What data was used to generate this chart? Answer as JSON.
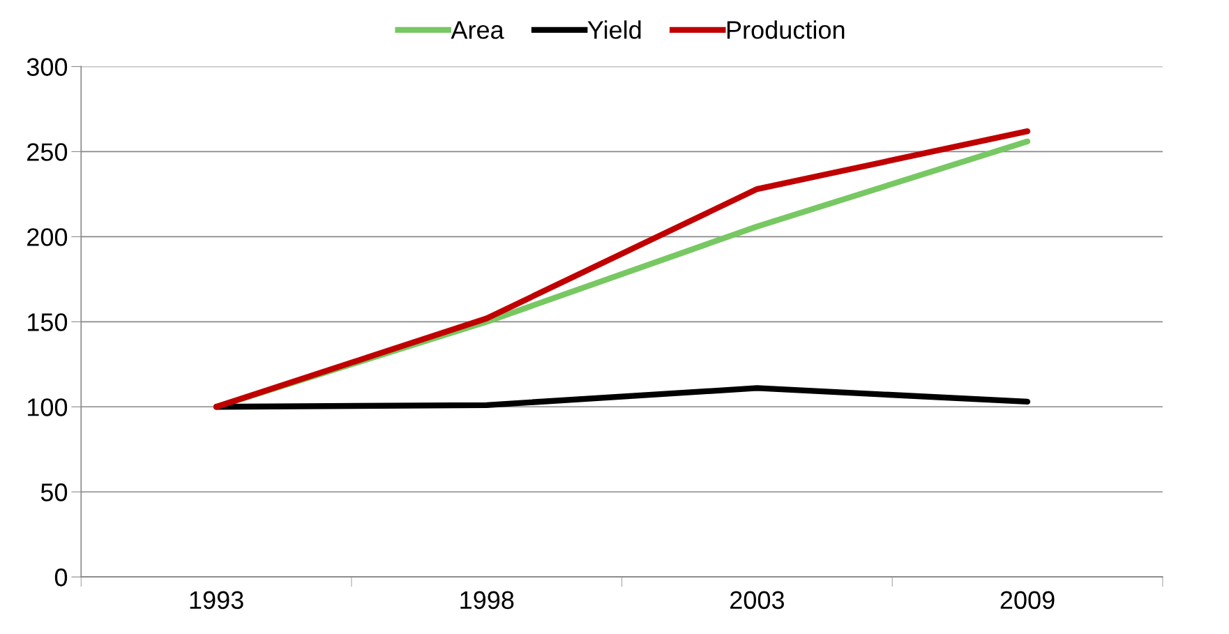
{
  "chart_data": {
    "type": "line",
    "categories": [
      "1993",
      "1998",
      "2003",
      "2009"
    ],
    "series": [
      {
        "name": "Area",
        "color": "#77c862",
        "values": [
          100,
          150,
          206,
          256
        ]
      },
      {
        "name": "Yield",
        "color": "#000000",
        "values": [
          100,
          101,
          111,
          103
        ]
      },
      {
        "name": "Production",
        "color": "#c00000",
        "values": [
          100,
          152,
          228,
          262
        ]
      }
    ],
    "ylim": [
      0,
      300
    ],
    "yticks": [
      0,
      50,
      100,
      150,
      200,
      250,
      300
    ],
    "grid": "y",
    "legend": "top",
    "marker": "none",
    "line_style": "solid"
  }
}
